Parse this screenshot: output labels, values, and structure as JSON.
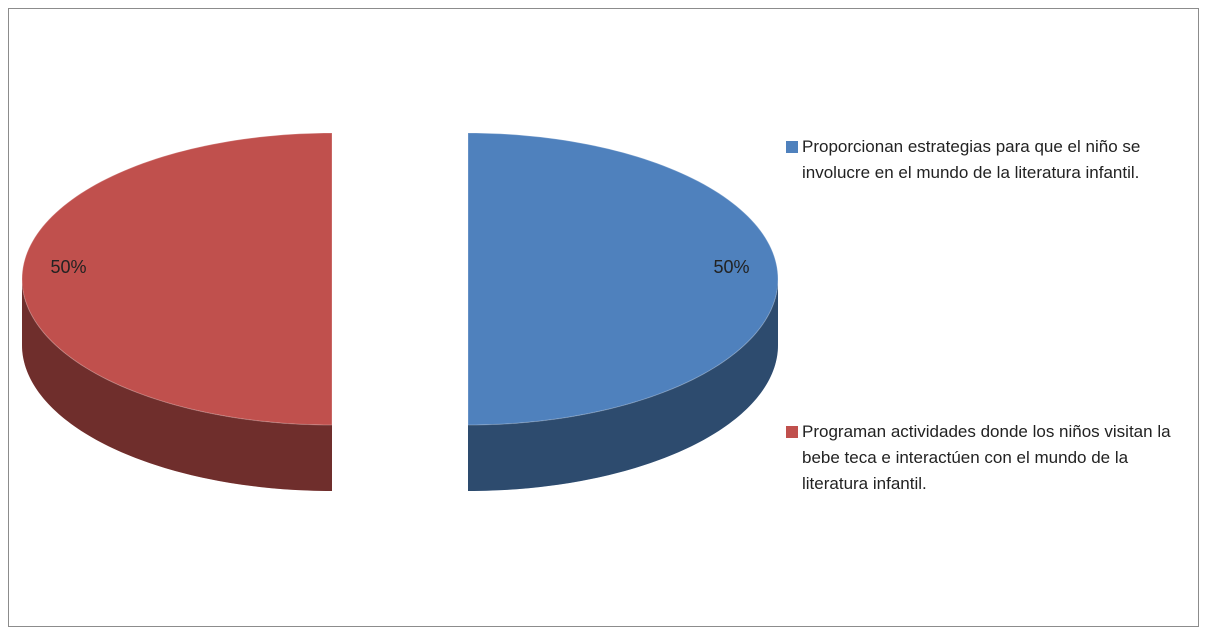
{
  "chart_data": {
    "type": "pie",
    "categories": [
      "Proporcionan estrategias para que el niño se involucre en el mundo de la literatura infantil.",
      "Programan actividades donde los niños visitan la bebe teca e interactúen con el mundo de la literatura infantil."
    ],
    "values": [
      50,
      50
    ],
    "value_labels": [
      "50%",
      "50%"
    ],
    "colors": [
      "#4f81bd",
      "#c0504d"
    ],
    "legend": "right"
  }
}
